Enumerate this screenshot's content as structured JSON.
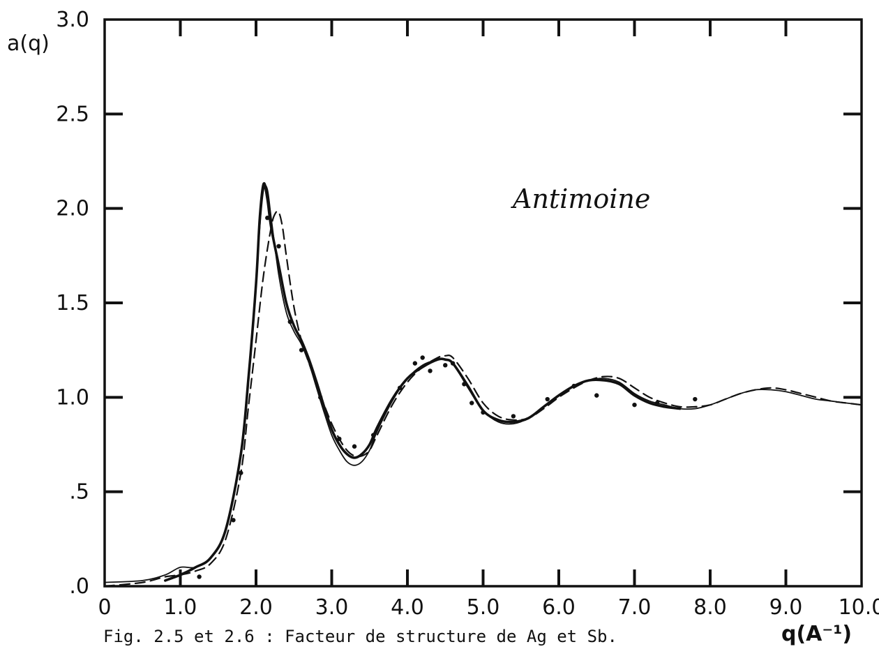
{
  "chart_data": {
    "type": "line",
    "title": "",
    "annotation": "Antimoine",
    "caption": "Fig. 2.5 et 2.6 : Facteur de structure de Ag et Sb.",
    "xlabel": "q(A⁻¹)",
    "ylabel": "a(q)",
    "xlim": [
      0,
      10
    ],
    "ylim": [
      0,
      3
    ],
    "grid": false,
    "x_ticks": [
      {
        "value": 0,
        "label": "0"
      },
      {
        "value": 1,
        "label": "1.0"
      },
      {
        "value": 2,
        "label": "2.0"
      },
      {
        "value": 3,
        "label": "3.0"
      },
      {
        "value": 4,
        "label": "4.0"
      },
      {
        "value": 5,
        "label": "5.0"
      },
      {
        "value": 6,
        "label": "6.0"
      },
      {
        "value": 7,
        "label": "7.0"
      },
      {
        "value": 8,
        "label": "8.0"
      },
      {
        "value": 9,
        "label": "9.0"
      },
      {
        "value": 10,
        "label": "10.0"
      }
    ],
    "y_ticks": [
      {
        "value": 0,
        "label": ".0"
      },
      {
        "value": 0.5,
        "label": ".5"
      },
      {
        "value": 1,
        "label": "1.0"
      },
      {
        "value": 1.5,
        "label": "1.5"
      },
      {
        "value": 2,
        "label": "2.0"
      },
      {
        "value": 2.5,
        "label": "2.5"
      },
      {
        "value": 3,
        "label": "3.0"
      }
    ],
    "series": [
      {
        "style": "solid-thin",
        "x": [
          0,
          0.5,
          0.8,
          1.0,
          1.2,
          1.4,
          1.6,
          1.8,
          1.9,
          2.0,
          2.05,
          2.1,
          2.15,
          2.2,
          2.3,
          2.4,
          2.5,
          2.6,
          2.7,
          2.8,
          2.9,
          3.0,
          3.1,
          3.2,
          3.3,
          3.4,
          3.5,
          3.6,
          3.8,
          4.0,
          4.2,
          4.4,
          4.5,
          4.6,
          4.8,
          5.0,
          5.2,
          5.4,
          5.6,
          5.8,
          6.0,
          6.2,
          6.4,
          6.6,
          6.8,
          7.0,
          7.2,
          7.4,
          7.6,
          7.8,
          8.0,
          8.2,
          8.4,
          8.6,
          8.8,
          9.0,
          9.2,
          9.4,
          9.6,
          9.8,
          10.0
        ],
        "y": [
          0.02,
          0.03,
          0.06,
          0.1,
          0.1,
          0.15,
          0.3,
          0.7,
          1.1,
          1.6,
          1.9,
          2.1,
          2.1,
          1.95,
          1.65,
          1.45,
          1.35,
          1.28,
          1.18,
          1.05,
          0.92,
          0.8,
          0.72,
          0.66,
          0.64,
          0.66,
          0.72,
          0.82,
          0.98,
          1.1,
          1.17,
          1.2,
          1.2,
          1.18,
          1.05,
          0.93,
          0.87,
          0.86,
          0.89,
          0.95,
          1.01,
          1.06,
          1.09,
          1.1,
          1.08,
          1.02,
          0.98,
          0.96,
          0.94,
          0.94,
          0.96,
          0.99,
          1.02,
          1.04,
          1.04,
          1.03,
          1.01,
          0.99,
          0.98,
          0.97,
          0.96
        ]
      },
      {
        "style": "solid-thick",
        "x": [
          0.8,
          1.0,
          1.2,
          1.4,
          1.6,
          1.8,
          1.9,
          2.0,
          2.05,
          2.1,
          2.15,
          2.2,
          2.3,
          2.4,
          2.5,
          2.6,
          2.7,
          2.8,
          2.9,
          3.0,
          3.1,
          3.2,
          3.3,
          3.4,
          3.5,
          3.6,
          3.8,
          4.0,
          4.2,
          4.4,
          4.5,
          4.6,
          4.8,
          5.0,
          5.2,
          5.4,
          5.6,
          5.8,
          6.0,
          6.2,
          6.4,
          6.6,
          6.8,
          7.0,
          7.2,
          7.4,
          7.6
        ],
        "y": [
          0.03,
          0.06,
          0.1,
          0.15,
          0.3,
          0.7,
          1.1,
          1.6,
          1.95,
          2.13,
          2.05,
          1.9,
          1.7,
          1.5,
          1.38,
          1.3,
          1.2,
          1.08,
          0.95,
          0.83,
          0.75,
          0.7,
          0.68,
          0.7,
          0.75,
          0.84,
          0.99,
          1.1,
          1.16,
          1.2,
          1.2,
          1.18,
          1.06,
          0.93,
          0.88,
          0.87,
          0.89,
          0.95,
          1.01,
          1.06,
          1.09,
          1.09,
          1.07,
          1.01,
          0.97,
          0.95,
          0.94
        ]
      },
      {
        "style": "dashed",
        "x": [
          0,
          0.5,
          0.8,
          1.0,
          1.2,
          1.4,
          1.6,
          1.8,
          1.9,
          2.0,
          2.1,
          2.2,
          2.25,
          2.3,
          2.35,
          2.4,
          2.5,
          2.6,
          2.7,
          2.8,
          2.9,
          3.0,
          3.1,
          3.2,
          3.3,
          3.4,
          3.5,
          3.6,
          3.8,
          4.0,
          4.2,
          4.4,
          4.5,
          4.6,
          4.8,
          5.0,
          5.2,
          5.4,
          5.6,
          5.8,
          6.0,
          6.2,
          6.4,
          6.6,
          6.8,
          7.0,
          7.2,
          7.4,
          7.6,
          7.8,
          8.0,
          8.2,
          8.4,
          8.6,
          8.8,
          9.0,
          9.2,
          9.4,
          9.6,
          9.8,
          10.0
        ],
        "y": [
          0.0,
          0.02,
          0.05,
          0.06,
          0.08,
          0.12,
          0.25,
          0.6,
          0.95,
          1.3,
          1.65,
          1.9,
          1.97,
          1.98,
          1.9,
          1.75,
          1.48,
          1.3,
          1.18,
          1.07,
          0.96,
          0.86,
          0.78,
          0.72,
          0.69,
          0.69,
          0.72,
          0.8,
          0.96,
          1.08,
          1.16,
          1.21,
          1.22,
          1.21,
          1.1,
          0.97,
          0.9,
          0.88,
          0.89,
          0.94,
          1.0,
          1.05,
          1.09,
          1.11,
          1.1,
          1.05,
          1.0,
          0.97,
          0.95,
          0.95,
          0.96,
          0.99,
          1.02,
          1.04,
          1.05,
          1.04,
          1.02,
          1.0,
          0.98,
          0.97,
          0.96
        ]
      },
      {
        "style": "dots",
        "x": [
          1.25,
          1.7,
          1.8,
          2.15,
          2.3,
          2.45,
          2.6,
          2.85,
          3.1,
          3.3,
          3.55,
          3.9,
          4.1,
          4.2,
          4.3,
          4.5,
          4.6,
          4.75,
          4.85,
          5.0,
          5.4,
          5.85,
          6.2,
          6.5,
          7.0,
          7.3,
          7.8
        ],
        "y": [
          0.05,
          0.35,
          0.6,
          1.95,
          1.8,
          1.4,
          1.25,
          1.0,
          0.78,
          0.74,
          0.8,
          1.05,
          1.18,
          1.21,
          1.14,
          1.17,
          1.18,
          1.07,
          0.97,
          0.92,
          0.9,
          0.99,
          1.06,
          1.01,
          0.96,
          0.97,
          0.99
        ]
      }
    ]
  }
}
